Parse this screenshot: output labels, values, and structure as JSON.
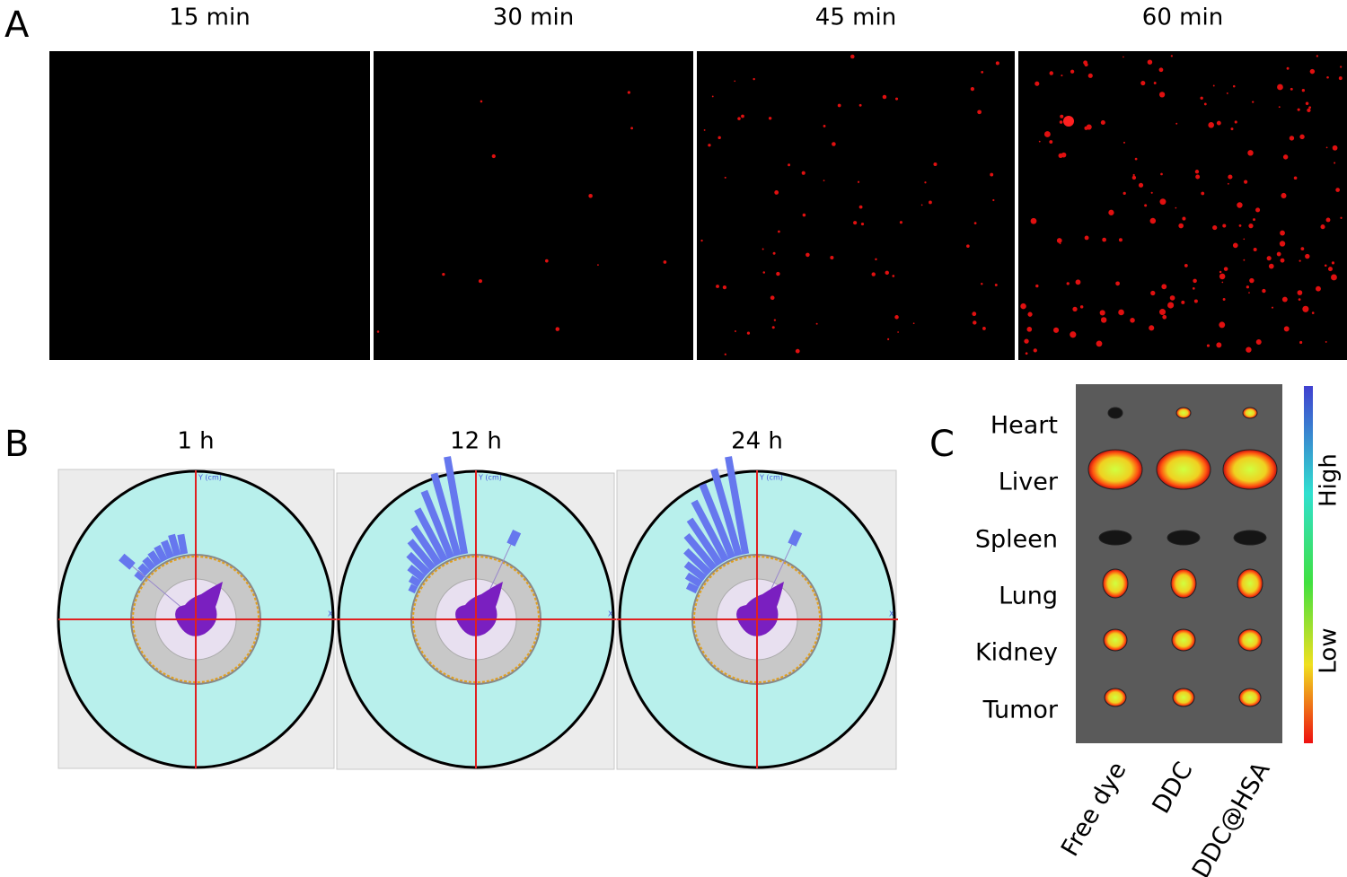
{
  "panel_a": {
    "label": "A",
    "titles": [
      "15 min",
      "30 min",
      "45 min",
      "60 min"
    ]
  },
  "panel_b": {
    "label": "B",
    "titles": [
      "1 h",
      "12 h",
      "24 h"
    ],
    "x_axis": "X",
    "y_axis": "Y (cm)"
  },
  "panel_c": {
    "label": "C",
    "organs": [
      "Heart",
      "Liver",
      "Spleen",
      "Lung",
      "Kidney",
      "Tumor"
    ],
    "groups": [
      "Free dye",
      "DDC",
      "DDC@HSA"
    ],
    "scale_high": "High",
    "scale_low": "Low"
  }
}
